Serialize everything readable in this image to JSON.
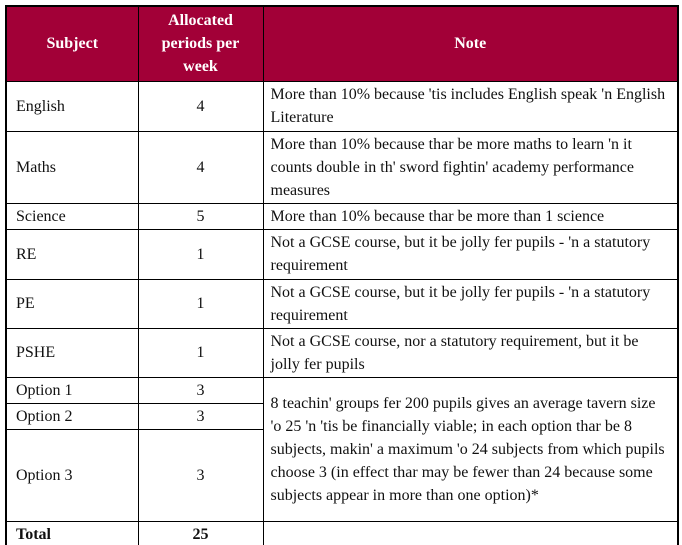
{
  "table": {
    "headers": {
      "subject": "Subject",
      "periods": "Allocated periods per week",
      "note": "Note"
    },
    "rows": [
      {
        "subject": "English",
        "periods": "4",
        "note": "More than 10% because 'tis includes English speak 'n English Literature"
      },
      {
        "subject": "Maths",
        "periods": "4",
        "note": "More than 10% because thar be more maths to learn 'n it counts double in th' sword fightin' academy performance measures"
      },
      {
        "subject": "Science",
        "periods": "5",
        "note": "More than 10% because thar be more than 1 science"
      },
      {
        "subject": "RE",
        "periods": "1",
        "note": "Not a GCSE course, but it be jolly fer pupils - 'n a statutory requirement"
      },
      {
        "subject": "PE",
        "periods": "1",
        "note": "Not a GCSE course, but it be jolly fer pupils - 'n a statutory requirement"
      },
      {
        "subject": "PSHE",
        "periods": "1",
        "note": "Not a GCSE course, nor a statutory requirement, but it be jolly fer pupils"
      },
      {
        "subject": "Option 1",
        "periods": "3"
      },
      {
        "subject": "Option 2",
        "periods": "3"
      },
      {
        "subject": "Option 3",
        "periods": "3"
      },
      {
        "subject": "Total",
        "periods": "25",
        "note": ""
      }
    ],
    "option_note": "8 teachin' groups fer 200 pupils gives an average tavern size 'o 25 'n 'tis be financially viable; in each option thar be 8 subjects, makin' a maximum 'o 24 subjects from which pupils choose 3 (in effect thar may be fewer than 24 because some subjects appear in more than one option)*",
    "colors": {
      "header_bg": "#A20037",
      "header_text": "#FFFFFF",
      "border": "#000000",
      "body_text": "#111111"
    }
  }
}
